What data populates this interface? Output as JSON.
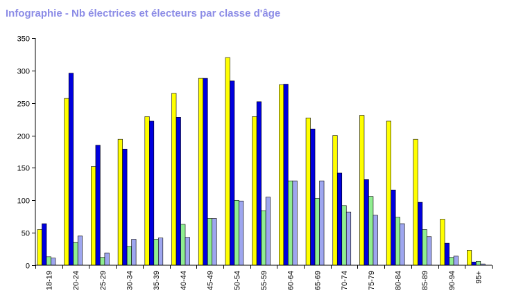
{
  "colors": {
    "title": "#8c8ce6",
    "series": [
      "#ffff00",
      "#0000dd",
      "#90ee90",
      "#9ea6ef"
    ],
    "bar_stroke": "#000000",
    "axis": "#000000"
  },
  "chart_data": {
    "type": "bar",
    "title": "Infographie - Nb électrices et électeurs par classe d'âge",
    "xlabel": "",
    "ylabel": "",
    "ylim": [
      0,
      350
    ],
    "yticks": [
      0,
      50,
      100,
      150,
      200,
      250,
      300,
      350
    ],
    "grid": false,
    "legend": "none",
    "categories": [
      "18-19",
      "20-24",
      "25-29",
      "30-34",
      "35-39",
      "40-44",
      "45-49",
      "50-54",
      "55-59",
      "60-64",
      "65-69",
      "70-74",
      "75-79",
      "80-84",
      "85-89",
      "90-94",
      "95+"
    ],
    "series": [
      {
        "values": [
          55,
          257,
          152,
          194,
          229,
          265,
          288,
          320,
          229,
          278,
          227,
          200,
          231,
          222,
          194,
          71,
          23
        ]
      },
      {
        "values": [
          64,
          296,
          185,
          179,
          222,
          228,
          288,
          284,
          252,
          279,
          210,
          142,
          132,
          116,
          97,
          34,
          5
        ]
      },
      {
        "values": [
          13,
          35,
          12,
          29,
          40,
          63,
          72,
          100,
          84,
          130,
          103,
          92,
          106,
          74,
          55,
          12,
          6
        ]
      },
      {
        "values": [
          11,
          45,
          19,
          40,
          42,
          43,
          72,
          99,
          105,
          130,
          130,
          82,
          77,
          64,
          44,
          14,
          2
        ]
      }
    ]
  }
}
